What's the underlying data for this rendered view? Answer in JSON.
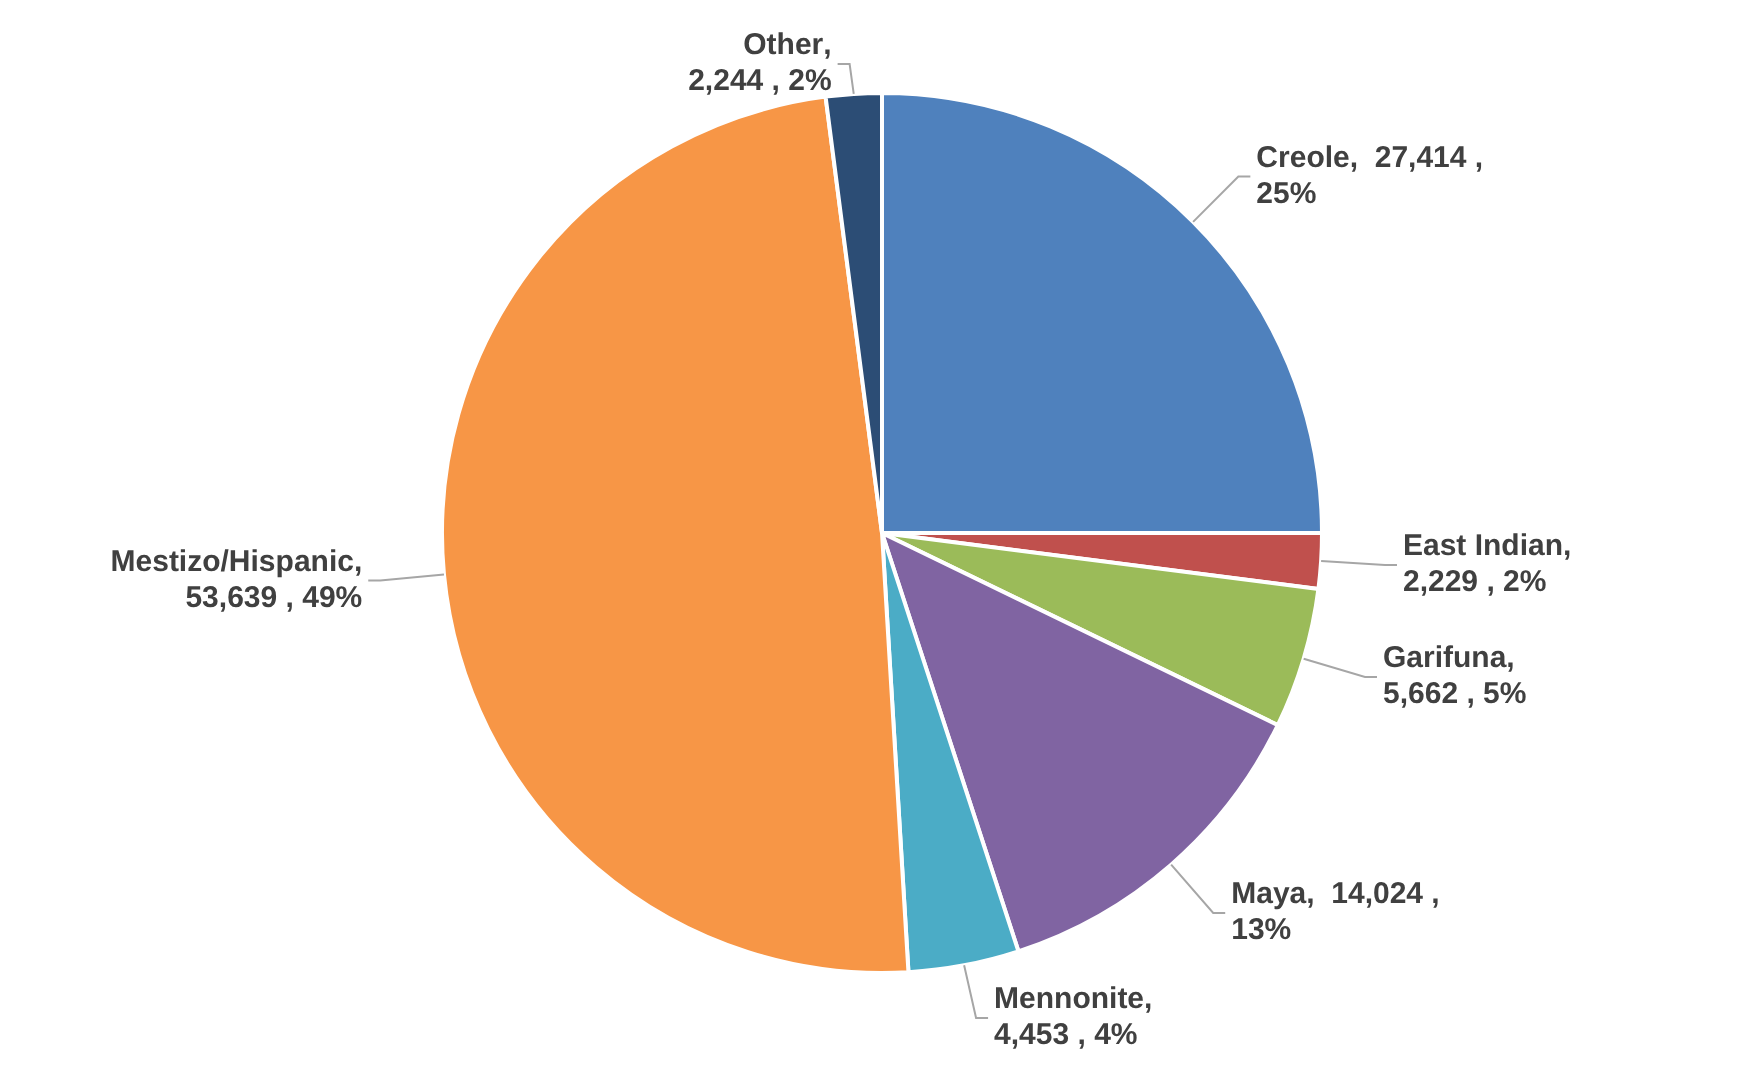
{
  "chart_data": {
    "type": "pie",
    "categories": [
      "Creole",
      "East Indian",
      "Garifuna",
      "Maya",
      "Mennonite",
      "Mestizo/Hispanic",
      "Other"
    ],
    "values": [
      27414,
      2229,
      5662,
      14024,
      4453,
      53639,
      2244
    ],
    "colors": [
      "#4f81bd",
      "#c0504d",
      "#9bbb59",
      "#8064a2",
      "#4bacc6",
      "#f79646",
      "#2c4d75"
    ],
    "value_labels": [
      ",  27,414 ,\n25%",
      ",\n2,229 , 2%",
      ",\n5,662 , 5%",
      ",  14,024 ,\n13%",
      ",\n4,453 , 4%",
      ",\n53,639 , 49%",
      ",\n2,244 , 2%"
    ],
    "legend": false
  }
}
